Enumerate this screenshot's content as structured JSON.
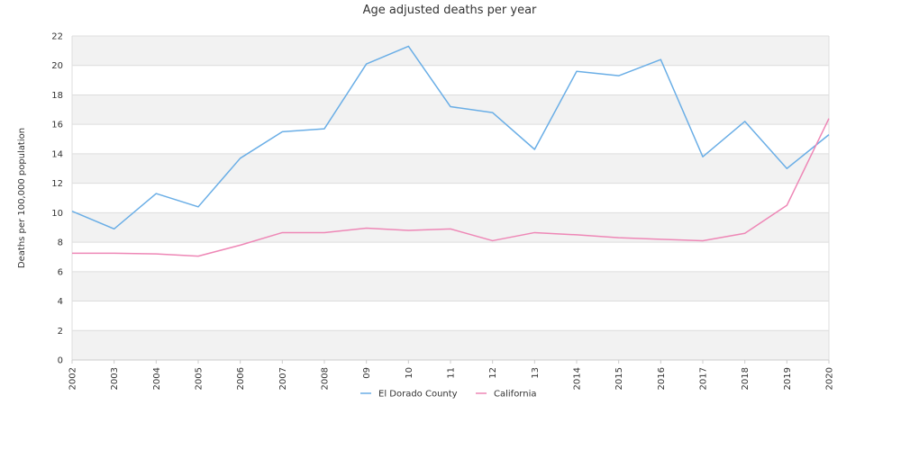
{
  "chart_data": {
    "type": "line",
    "title": "Age adjusted deaths per year",
    "xlabel": "",
    "ylabel": "Deaths per 100,000 population",
    "categories": [
      "2002",
      "2003",
      "2004",
      "2005",
      "2006",
      "2007",
      "2008",
      "09",
      "10",
      "11",
      "12",
      "13",
      "2014",
      "2015",
      "2016",
      "2017",
      "2018",
      "2019",
      "2020"
    ],
    "ylim": [
      0,
      22
    ],
    "yticks": [
      0,
      2,
      4,
      6,
      8,
      10,
      12,
      14,
      16,
      18,
      20,
      22
    ],
    "grid": "alternating horizontal bands",
    "legend_position": "bottom",
    "series": [
      {
        "name": "El Dorado County",
        "color": "#6aaee6",
        "values": [
          10.1,
          8.9,
          11.3,
          10.4,
          13.7,
          15.5,
          15.7,
          20.1,
          21.3,
          17.2,
          16.8,
          14.3,
          19.6,
          19.3,
          20.4,
          13.8,
          16.2,
          13.0,
          15.3
        ]
      },
      {
        "name": "California",
        "color": "#ee87b6",
        "values": [
          7.25,
          7.25,
          7.2,
          7.05,
          7.8,
          8.65,
          8.65,
          8.95,
          8.8,
          8.9,
          8.1,
          8.65,
          8.5,
          8.3,
          8.2,
          8.1,
          8.6,
          10.5,
          16.4
        ]
      }
    ]
  }
}
